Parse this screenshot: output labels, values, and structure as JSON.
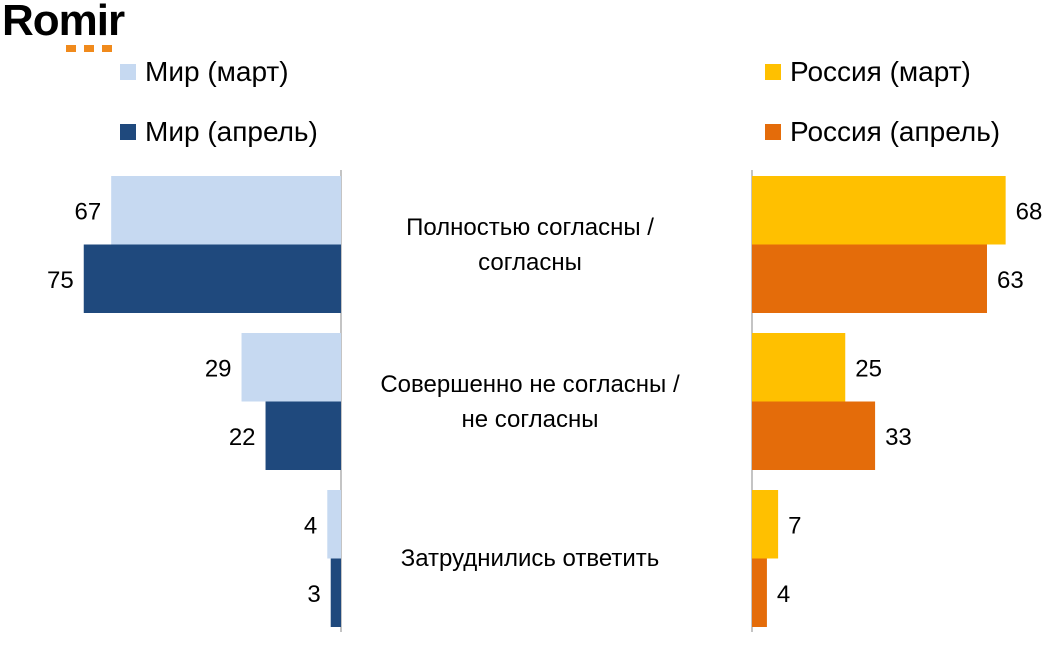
{
  "logo": {
    "text": "Romir"
  },
  "chart_data": {
    "type": "bar",
    "orientation": "horizontal-butterfly",
    "categories": [
      "Полностью согласны /\nсогласны",
      "Совершенно не согласны /\nне согласны",
      "Затруднились  ответить"
    ],
    "series": [
      {
        "name": "Мир (март)",
        "side": "left",
        "color": "#c6d9f1",
        "values": [
          67,
          29,
          4
        ]
      },
      {
        "name": "Мир (апрель)",
        "side": "left",
        "color": "#1f497d",
        "values": [
          75,
          22,
          3
        ]
      },
      {
        "name": "Россия (март)",
        "side": "right",
        "color": "#ffc000",
        "values": [
          68,
          25,
          7
        ]
      },
      {
        "name": "Россия (апрель)",
        "side": "right",
        "color": "#e46c0a",
        "values": [
          63,
          33,
          4
        ]
      }
    ],
    "legend_placement": "top",
    "grid": false
  }
}
